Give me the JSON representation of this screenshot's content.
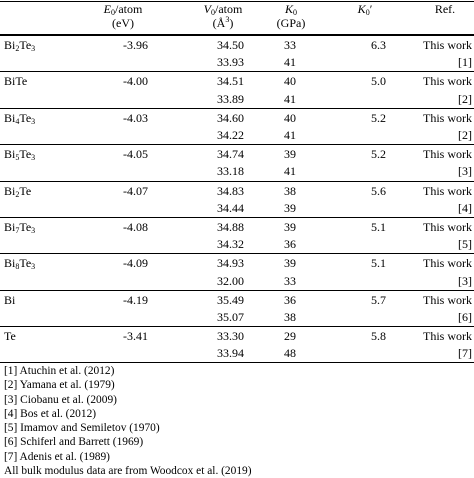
{
  "headers": {
    "e0_sym": "E",
    "e0_sub": "0",
    "e0_rest": "/atom",
    "e0_unit": "(eV)",
    "v0_sym": "V",
    "v0_sub": "0",
    "v0_rest": "/atom",
    "v0_unit_open": "(Å",
    "v0_unit_sup": "3",
    "v0_unit_close": ")",
    "k0_sym": "K",
    "k0_sub": "0",
    "k0_unit": "(GPa)",
    "kp_sym": "K",
    "kp_sub": "0",
    "kp_prime": "′",
    "ref": "Ref."
  },
  "rows": [
    {
      "comp": "Bi",
      "comp_sub": "2",
      "comp_rest": "Te",
      "comp_sub2": "3",
      "e0": "-3.96",
      "v0": "34.50",
      "k0": "33",
      "kp": "6.3",
      "ref": "This work"
    },
    {
      "v0": "33.93",
      "k0": "41",
      "ref": "[1]"
    },
    {
      "comp": "BiTe",
      "e0": "-4.00",
      "v0": "34.51",
      "k0": "40",
      "kp": "5.0",
      "ref": "This work"
    },
    {
      "v0": "33.89",
      "k0": "41",
      "ref": "[2]"
    },
    {
      "comp": "Bi",
      "comp_sub": "4",
      "comp_rest": "Te",
      "comp_sub2": "3",
      "e0": "-4.03",
      "v0": "34.60",
      "k0": "40",
      "kp": "5.2",
      "ref": "This work"
    },
    {
      "v0": "34.22",
      "k0": "41",
      "ref": "[2]"
    },
    {
      "comp": "Bi",
      "comp_sub": "5",
      "comp_rest": "Te",
      "comp_sub2": "3",
      "e0": "-4.05",
      "v0": "34.74",
      "k0": "39",
      "kp": "5.2",
      "ref": "This work"
    },
    {
      "v0": "33.18",
      "k0": "41",
      "ref": "[3]"
    },
    {
      "comp": "Bi",
      "comp_sub": "2",
      "comp_rest": "Te",
      "e0": "-4.07",
      "v0": "34.83",
      "k0": "38",
      "kp": "5.6",
      "ref": "This work"
    },
    {
      "v0": "34.44",
      "k0": "39",
      "ref": "[4]"
    },
    {
      "comp": "Bi",
      "comp_sub": "7",
      "comp_rest": "Te",
      "comp_sub2": "3",
      "e0": "-4.08",
      "v0": "34.88",
      "k0": "39",
      "kp": "5.1",
      "ref": "This work"
    },
    {
      "v0": "34.32",
      "k0": "36",
      "ref": "[5]"
    },
    {
      "comp": "Bi",
      "comp_sub": "8",
      "comp_rest": "Te",
      "comp_sub2": "3",
      "e0": "-4.09",
      "v0": "34.93",
      "k0": "39",
      "kp": "5.1",
      "ref": "This work"
    },
    {
      "v0": "32.00",
      "k0": "33",
      "ref": "[3]"
    },
    {
      "comp": "Bi",
      "e0": "-4.19",
      "v0": "35.49",
      "k0": "36",
      "kp": "5.7",
      "ref": "This work"
    },
    {
      "v0": "35.07",
      "k0": "38",
      "ref": "[6]"
    },
    {
      "comp": "Te",
      "e0": "-3.41",
      "v0": "33.30",
      "k0": "29",
      "kp": "5.8",
      "ref": "This work"
    },
    {
      "v0": "33.94",
      "k0": "48",
      "ref": "[7]"
    }
  ],
  "notes": [
    "[1] Atuchin et al. (2012)",
    "[2] Yamana et al. (1979)",
    "[3] Ciobanu et al. (2009)",
    "[4] Bos et al. (2012)",
    "[5] Imamov and Semiletov (1970)",
    "[6] Schiferl and Barrett (1969)",
    "[7] Adenis et al. (1989)",
    "All bulk modulus data are from Woodcox et al. (2019)"
  ]
}
